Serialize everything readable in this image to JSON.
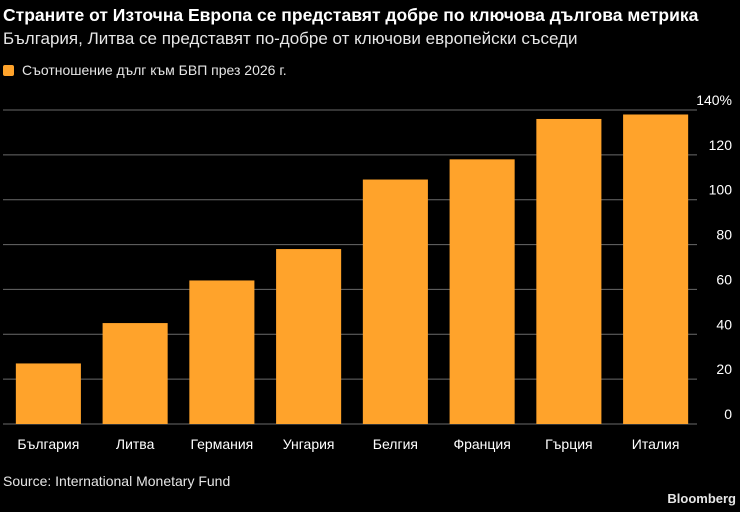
{
  "header": {
    "title": "Страните от Източна Европа се представят добре по ключова дългова метрика",
    "subtitle": "България, Литва се представят по-добре от ключови европейски съседи"
  },
  "footer": {
    "source": "Source: International Monetary Fund",
    "brand": "Bloomberg"
  },
  "colors": {
    "bar": "#ffa32b",
    "grid": "#6a6a6a",
    "text": "#ffffff"
  },
  "chart_data": {
    "type": "bar",
    "categories": [
      "България",
      "Литва",
      "Германия",
      "Унгария",
      "Белгия",
      "Франция",
      "Гърция",
      "Италия"
    ],
    "series": [
      {
        "name": "Съотношение дълг към БВП през 2026 г.",
        "values": [
          27,
          45,
          64,
          78,
          109,
          118,
          136,
          138
        ]
      }
    ],
    "ylim": [
      0,
      140
    ],
    "yticks": [
      0,
      20,
      40,
      60,
      80,
      100,
      120,
      140
    ],
    "ytick_labels": [
      "0",
      "20",
      "40",
      "60",
      "80",
      "100",
      "120",
      "140%"
    ],
    "y_axis_position": "right",
    "legend_position": "top-left",
    "grid": true
  }
}
